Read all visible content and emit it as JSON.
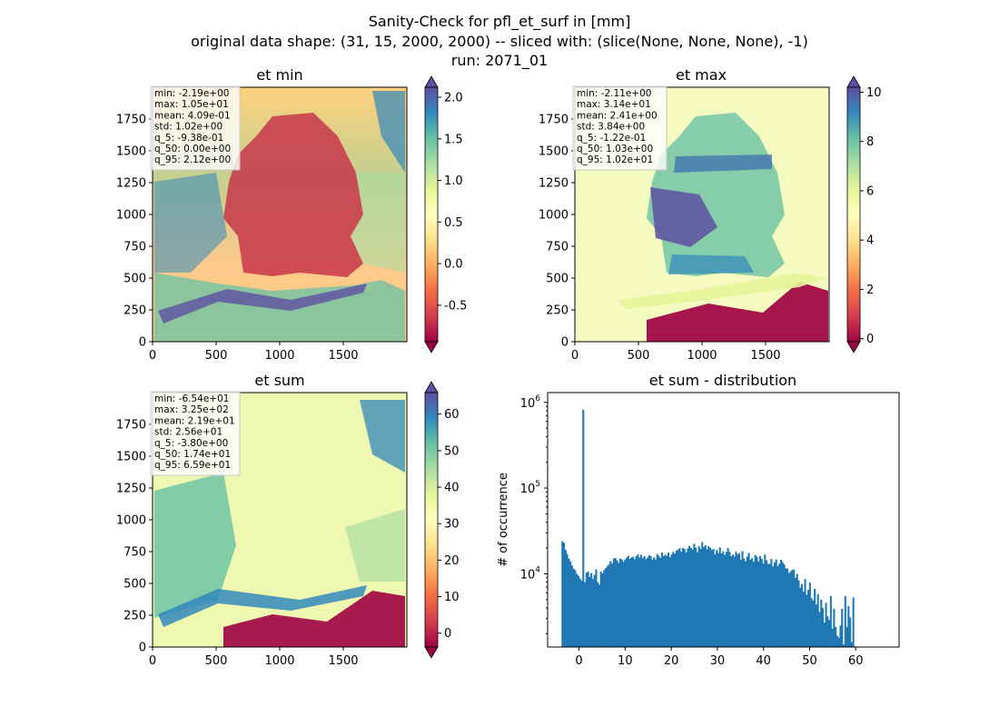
{
  "suptitle": [
    "Sanity-Check for pfl_et_surf in [mm]",
    "original data shape: (31, 15, 2000, 2000) -- sliced with: (slice(None, None, None), -1)",
    "run: 2071_01"
  ],
  "colors": {
    "spectral": [
      "#9e0142",
      "#d53e4f",
      "#f46d43",
      "#fdae61",
      "#fee08b",
      "#ffffbf",
      "#e6f598",
      "#abdda4",
      "#66c2a5",
      "#3288bd",
      "#5e4fa2"
    ],
    "hist_bar": "#1f77b4"
  },
  "panels": [
    {
      "title": "et min",
      "xticks": [
        "0",
        "500",
        "1000",
        "1500"
      ],
      "yticks": [
        "0",
        "250",
        "500",
        "750",
        "1000",
        "1250",
        "1500",
        "1750"
      ],
      "stats": [
        "min: -2.19e+00",
        "max: 1.05e+01",
        "mean: 4.09e-01",
        "std: 1.02e+00",
        "q_5: -9.38e-01",
        "q_50: 0.00e+00",
        "q_95: 2.12e+00"
      ],
      "colorbar": {
        "vmin": -0.938,
        "vmax": 2.12,
        "ticks": [
          "-0.5",
          "0.0",
          "0.5",
          "1.0",
          "1.5",
          "2.0"
        ],
        "tick_values": [
          -0.5,
          0.0,
          0.5,
          1.0,
          1.5,
          2.0
        ]
      }
    },
    {
      "title": "et max",
      "xticks": [
        "0",
        "500",
        "1000",
        "1500"
      ],
      "yticks": [
        "0",
        "250",
        "500",
        "750",
        "1000",
        "1250",
        "1500",
        "1750"
      ],
      "stats": [
        "min: -2.11e+00",
        "max: 3.14e+01",
        "mean: 2.41e+00",
        "std: 3.84e+00",
        "q_5: -1.22e-01",
        "q_50: 1.03e+00",
        "q_95: 1.02e+01"
      ],
      "colorbar": {
        "vmin": -0.122,
        "vmax": 10.2,
        "ticks": [
          "0",
          "2",
          "4",
          "6",
          "8",
          "10"
        ],
        "tick_values": [
          0,
          2,
          4,
          6,
          8,
          10
        ]
      }
    },
    {
      "title": "et sum",
      "xticks": [
        "0",
        "500",
        "1000",
        "1500"
      ],
      "yticks": [
        "0",
        "250",
        "500",
        "750",
        "1000",
        "1250",
        "1500",
        "1750"
      ],
      "stats": [
        "min: -6.54e+01",
        "max: 3.25e+02",
        "mean: 2.19e+01",
        "std: 2.56e+01",
        "q_5: -3.80e+00",
        "q_50: 1.74e+01",
        "q_95: 6.59e+01"
      ],
      "colorbar": {
        "vmin": -3.8,
        "vmax": 65.9,
        "ticks": [
          "0",
          "10",
          "20",
          "30",
          "40",
          "50",
          "60"
        ],
        "tick_values": [
          0,
          10,
          20,
          30,
          40,
          50,
          60
        ]
      }
    }
  ],
  "chart_data": {
    "type": "bar",
    "title": "et sum - distribution",
    "xlabel": "",
    "ylabel": "# of occurrence",
    "yscale": "log",
    "xlim": [
      -6.8,
      69.4
    ],
    "ylim": [
      1400,
      1300000
    ],
    "xticks": [
      "0",
      "10",
      "20",
      "30",
      "40",
      "50",
      "60"
    ],
    "xtick_values": [
      0,
      10,
      20,
      30,
      40,
      50,
      60
    ],
    "yticks": [
      "10^4",
      "10^5",
      "10^6"
    ],
    "ytick_values": [
      10000,
      100000,
      1000000
    ],
    "series": [
      {
        "bin_start": -3.8,
        "bin_width": 0.3485,
        "values": [
          24000,
          23000,
          19000,
          17000,
          15000,
          14000,
          12500,
          11500,
          11000,
          10000,
          9500,
          8800,
          8300,
          820000,
          8000,
          10300,
          10600,
          9200,
          10200,
          8700,
          9700,
          11300,
          8000,
          7500,
          10600,
          10100,
          11100,
          11700,
          12300,
          12900,
          14100,
          13200,
          15100,
          15300,
          14400,
          13400,
          15100,
          14700,
          13800,
          14700,
          15400,
          16200,
          14900,
          15600,
          15800,
          14800,
          16100,
          16800,
          15500,
          16600,
          15200,
          16100,
          14800,
          15400,
          16500,
          16100,
          14600,
          15600,
          14700,
          17000,
          16200,
          15300,
          17700,
          16100,
          16800,
          16200,
          17700,
          15600,
          16900,
          18100,
          17200,
          18700,
          19200,
          19900,
          18100,
          20000,
          19400,
          17800,
          19700,
          21100,
          20100,
          19200,
          22400,
          20200,
          17900,
          21000,
          19500,
          23500,
          20500,
          21600,
          19200,
          21000,
          20100,
          18900,
          19500,
          16800,
          19000,
          17500,
          20300,
          17300,
          18300,
          16600,
          18000,
          20000,
          18100,
          16100,
          16800,
          15900,
          18100,
          16800,
          17400,
          14600,
          18400,
          15100,
          14000,
          15900,
          17500,
          14600,
          15200,
          13800,
          16600,
          15800,
          13900,
          16100,
          14900,
          13200,
          16800,
          14400,
          13000,
          13100,
          14900,
          12200,
          13600,
          14700,
          12300,
          13100,
          14600,
          13700,
          12900,
          11600,
          11500,
          10200,
          10700,
          11100,
          11200,
          9000,
          10000,
          8400,
          6900,
          7600,
          6200,
          8700,
          5700,
          6500,
          7900,
          5200,
          4900,
          6700,
          4400,
          5800,
          3600,
          5000,
          4000,
          2700,
          4600,
          3200,
          2900,
          5500,
          2300,
          3900,
          2400,
          1900,
          1800,
          2500,
          3900,
          1500,
          5500,
          2400,
          4200,
          3100,
          1600,
          5300
        ]
      }
    ]
  }
}
